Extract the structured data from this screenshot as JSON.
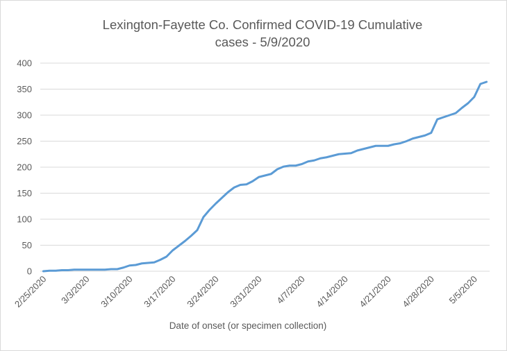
{
  "chart_data": {
    "type": "line",
    "title_line1": "Lexington-Fayette Co. Confirmed COVID-19 Cumulative",
    "title_line2": "cases - 5/9/2020",
    "xlabel": "Date of onset (or specimen collection)",
    "ylabel": "",
    "ylim": [
      0,
      400
    ],
    "y_ticks": [
      0,
      50,
      100,
      150,
      200,
      250,
      300,
      350,
      400
    ],
    "x_tick_labels": [
      "2/25/2020",
      "3/3/2020",
      "3/10/2020",
      "3/17/2020",
      "3/24/2020",
      "3/31/2020",
      "4/7/2020",
      "4/14/2020",
      "4/21/2020",
      "4/28/2020",
      "5/5/2020"
    ],
    "grid": true,
    "legend": "none",
    "line_color": "#5b9bd5",
    "series": [
      {
        "x": [
          "2/25/2020",
          "2/26/2020",
          "2/27/2020",
          "2/28/2020",
          "2/29/2020",
          "3/1/2020",
          "3/2/2020",
          "3/3/2020",
          "3/4/2020",
          "3/5/2020",
          "3/6/2020",
          "3/7/2020",
          "3/8/2020",
          "3/9/2020",
          "3/10/2020",
          "3/11/2020",
          "3/12/2020",
          "3/13/2020",
          "3/14/2020",
          "3/15/2020",
          "3/16/2020",
          "3/17/2020",
          "3/18/2020",
          "3/19/2020",
          "3/20/2020",
          "3/21/2020",
          "3/22/2020",
          "3/23/2020",
          "3/24/2020",
          "3/25/2020",
          "3/26/2020",
          "3/27/2020",
          "3/28/2020",
          "3/29/2020",
          "3/30/2020",
          "3/31/2020",
          "4/1/2020",
          "4/2/2020",
          "4/3/2020",
          "4/4/2020",
          "4/5/2020",
          "4/6/2020",
          "4/7/2020",
          "4/8/2020",
          "4/9/2020",
          "4/10/2020",
          "4/11/2020",
          "4/12/2020",
          "4/13/2020",
          "4/14/2020",
          "4/15/2020",
          "4/16/2020",
          "4/17/2020",
          "4/18/2020",
          "4/19/2020",
          "4/20/2020",
          "4/21/2020",
          "4/22/2020",
          "4/23/2020",
          "4/24/2020",
          "4/25/2020",
          "4/26/2020",
          "4/27/2020",
          "4/28/2020",
          "4/29/2020",
          "4/30/2020",
          "5/1/2020",
          "5/2/2020",
          "5/3/2020",
          "5/4/2020",
          "5/5/2020",
          "5/6/2020",
          "5/7/2020"
        ],
        "values": [
          0,
          1,
          1,
          2,
          2,
          3,
          3,
          3,
          3,
          3,
          3,
          4,
          4,
          7,
          11,
          12,
          15,
          16,
          17,
          22,
          28,
          40,
          49,
          58,
          68,
          79,
          104,
          118,
          130,
          141,
          152,
          161,
          166,
          167,
          173,
          181,
          184,
          187,
          196,
          201,
          203,
          203,
          206,
          211,
          213,
          217,
          219,
          222,
          225,
          226,
          227,
          232,
          235,
          238,
          241,
          241,
          241,
          244,
          246,
          250,
          255,
          258,
          261,
          266,
          292,
          296,
          300,
          304,
          314,
          323,
          335,
          360,
          364
        ]
      }
    ]
  }
}
